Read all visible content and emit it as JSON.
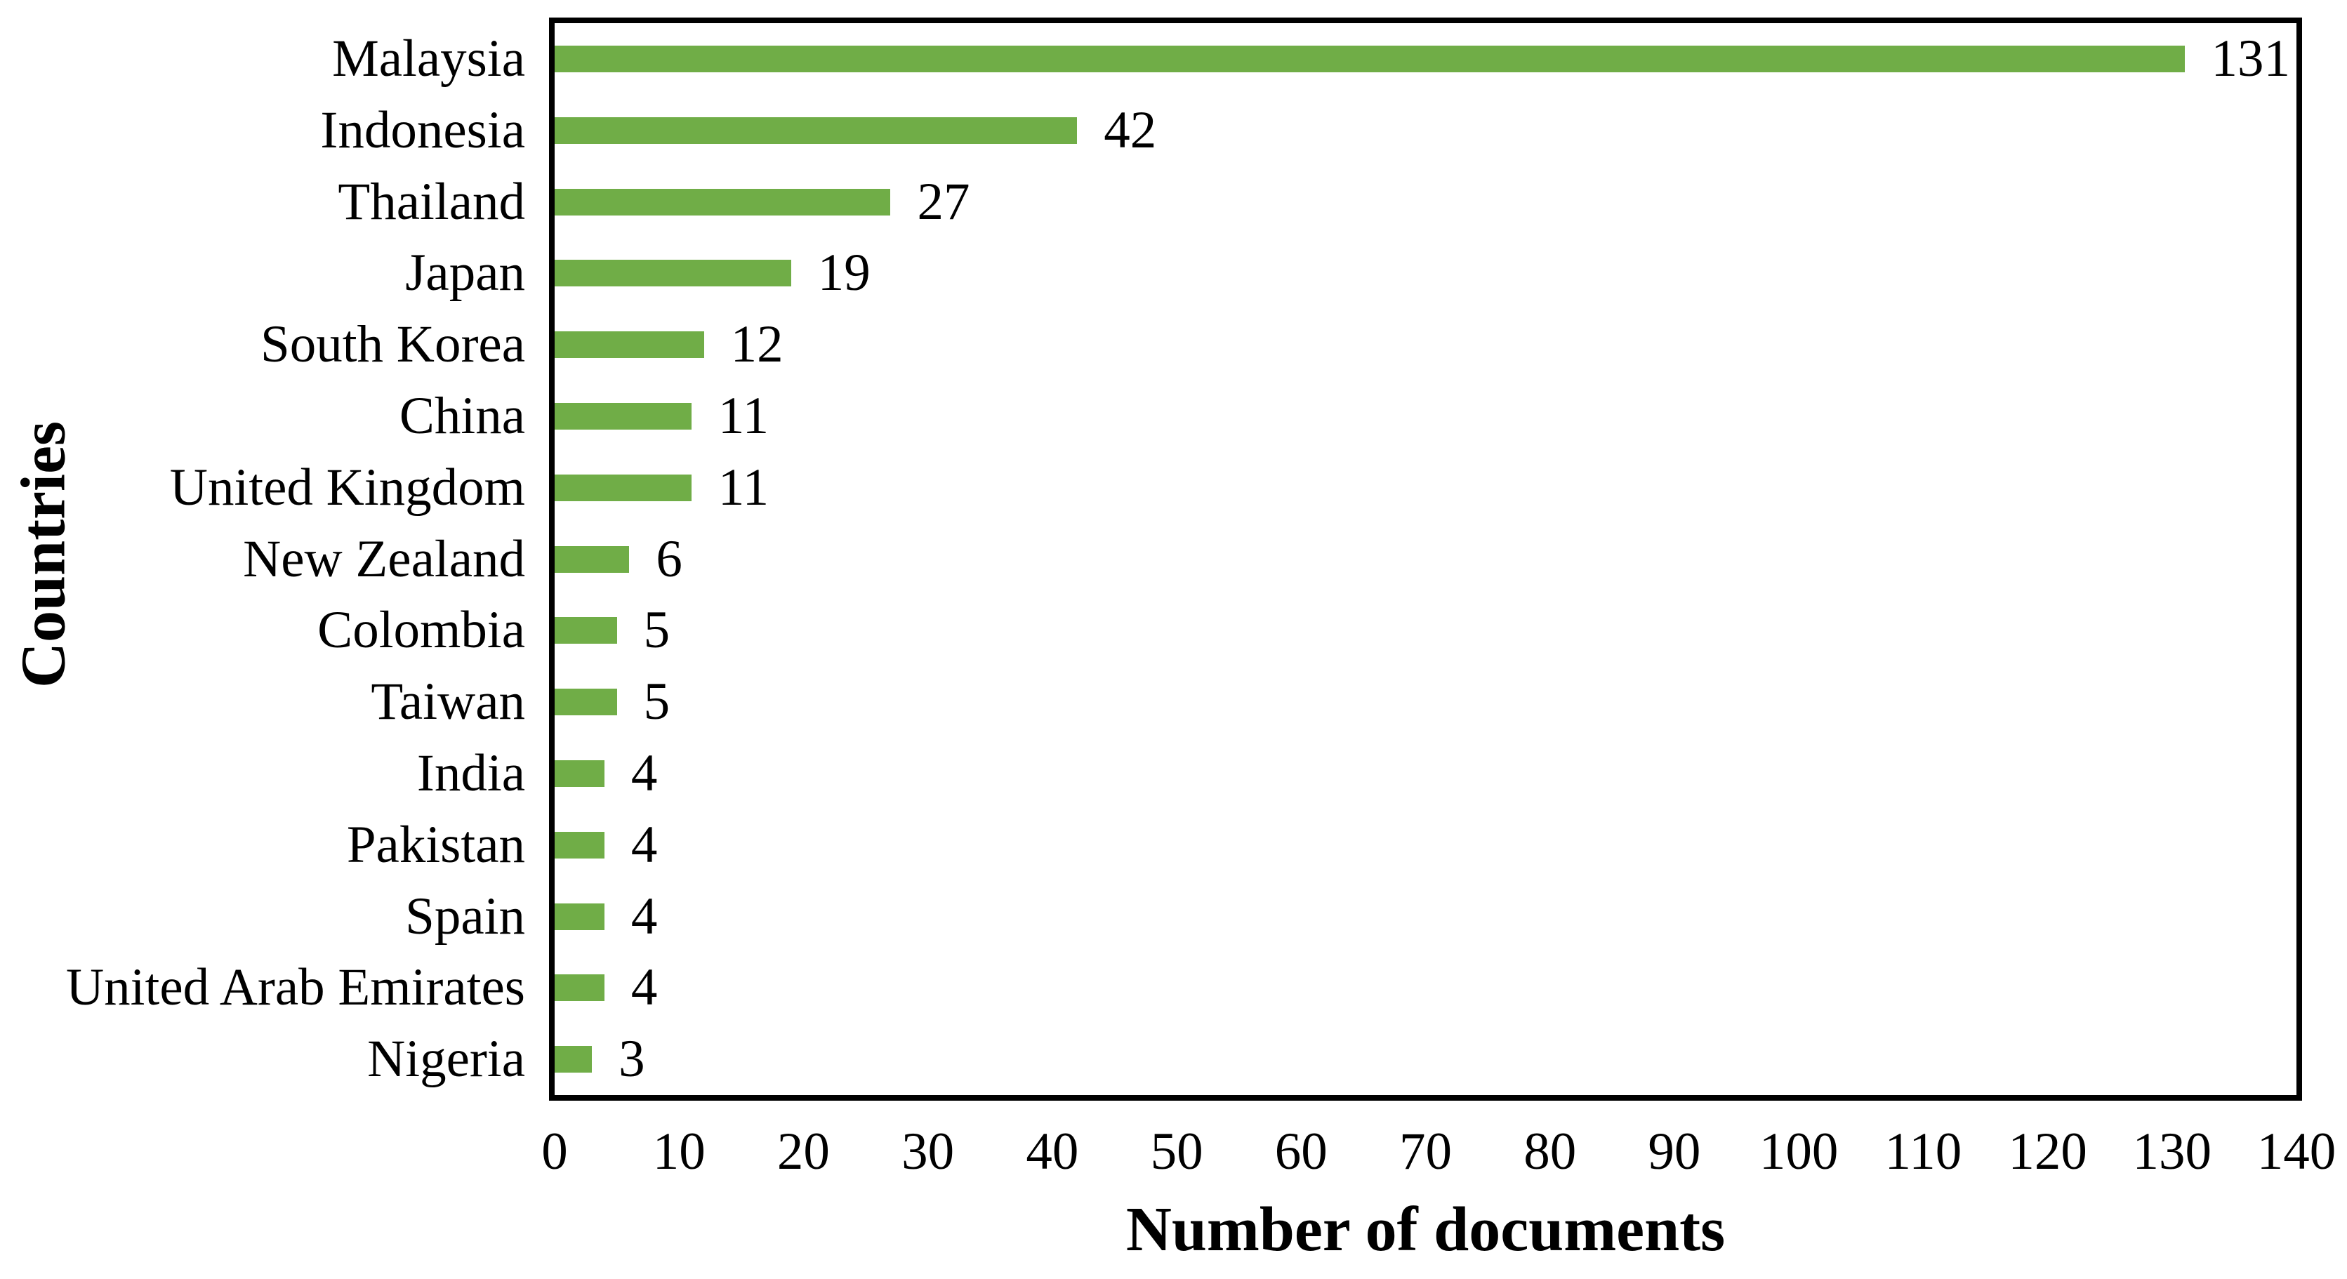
{
  "chart_data": {
    "type": "bar",
    "orientation": "horizontal",
    "title": "",
    "xlabel": "Number of documents",
    "ylabel": "Countries",
    "categories": [
      "Malaysia",
      "Indonesia",
      "Thailand",
      "Japan",
      "South Korea",
      "China",
      "United Kingdom",
      "New Zealand",
      "Colombia",
      "Taiwan",
      "India",
      "Pakistan",
      "Spain",
      "United Arab Emirates",
      "Nigeria"
    ],
    "values": [
      131,
      42,
      27,
      19,
      12,
      11,
      11,
      6,
      5,
      5,
      4,
      4,
      4,
      4,
      3
    ],
    "data_labels": true,
    "xlim": [
      0,
      140
    ],
    "xticks": [
      0,
      10,
      20,
      30,
      40,
      50,
      60,
      70,
      80,
      90,
      100,
      110,
      120,
      130,
      140
    ],
    "grid": false,
    "legend": "none",
    "bar_color": "#70AD47",
    "axis_color": "#000000",
    "text_color": "#000000",
    "background_color": "#ffffff"
  }
}
